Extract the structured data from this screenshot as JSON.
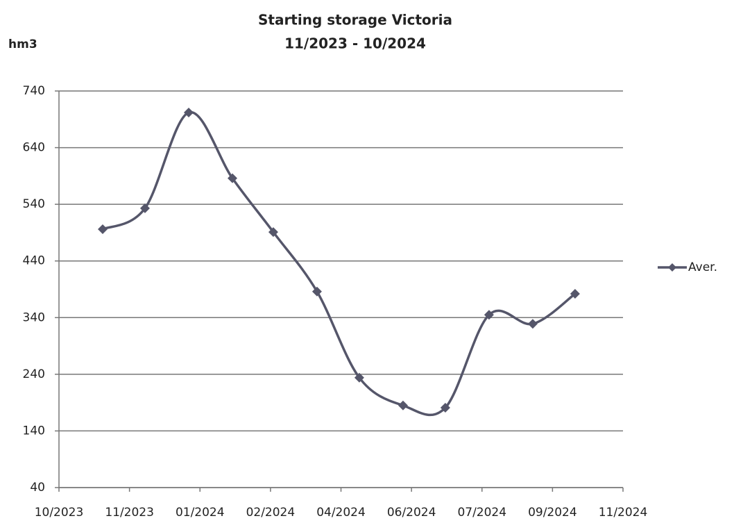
{
  "chart_data": {
    "type": "line",
    "title": "Starting storage Victoria",
    "subtitle": "11/2023 - 10/2024",
    "y_label": "hm3",
    "x": [
      "2023-11",
      "2023-12",
      "2024-01",
      "2024-02",
      "2024-03",
      "2024-04",
      "2024-05",
      "2024-06",
      "2024-07",
      "2024-08",
      "2024-09",
      "2024-10"
    ],
    "series": [
      {
        "name": "Aver.",
        "color": "#55566a",
        "values": [
          496,
          533,
          702,
          586,
          491,
          386,
          234,
          185,
          181,
          345,
          329,
          382
        ]
      }
    ],
    "xlim": [
      "2023-10-01",
      "2024-11-04"
    ],
    "xticks": [
      {
        "value": "2023-10-01",
        "label": "10/2023"
      },
      {
        "value": "2023-11-20",
        "label": "11/2023"
      },
      {
        "value": "2024-01-09",
        "label": "01/2024"
      },
      {
        "value": "2024-02-28",
        "label": "02/2024"
      },
      {
        "value": "2024-04-18",
        "label": "04/2024"
      },
      {
        "value": "2024-06-07",
        "label": "06/2024"
      },
      {
        "value": "2024-07-27",
        "label": "07/2024"
      },
      {
        "value": "2024-09-15",
        "label": "09/2024"
      },
      {
        "value": "2024-11-04",
        "label": "11/2024"
      }
    ],
    "ylim": [
      40,
      740
    ],
    "yticks": [
      40,
      140,
      240,
      340,
      440,
      540,
      640,
      740
    ],
    "grid": true,
    "legend": "right",
    "smooth": true
  }
}
